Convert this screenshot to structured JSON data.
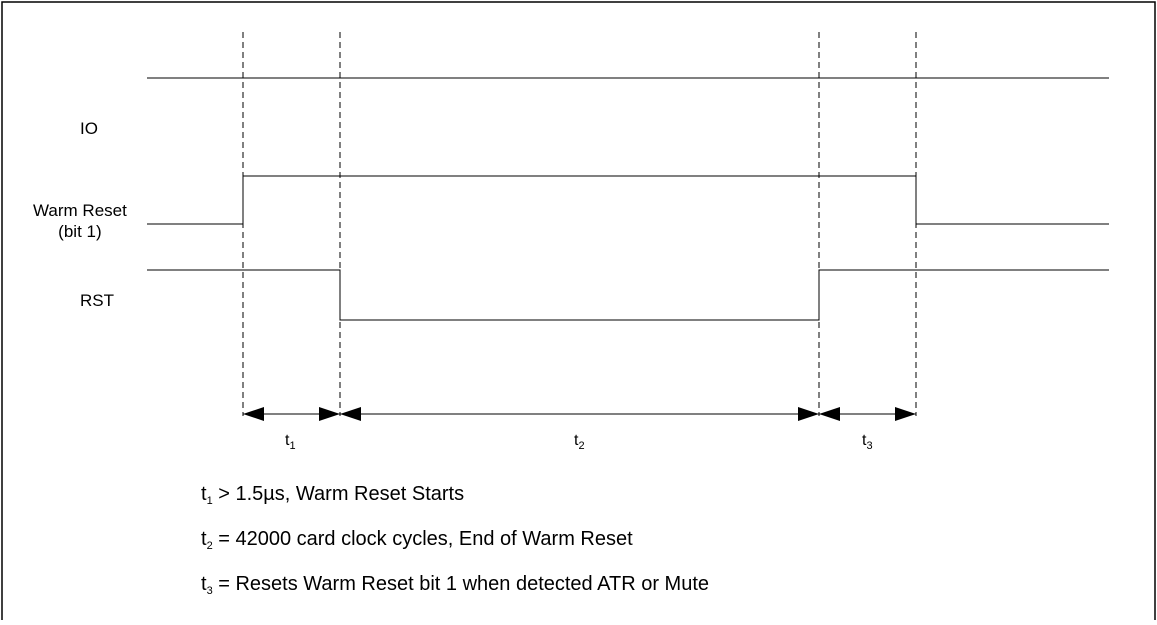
{
  "signals": {
    "io": "IO",
    "warm_reset": "Warm Reset",
    "warm_reset_sub": "(bit 1)",
    "rst": "RST"
  },
  "intervals": [
    {
      "symbol": "t",
      "index": "1"
    },
    {
      "symbol": "t",
      "index": "2"
    },
    {
      "symbol": "t",
      "index": "3"
    }
  ],
  "notes": [
    {
      "symbol": "t",
      "index": "1",
      "text": " >  1.5µs, Warm Reset Starts"
    },
    {
      "symbol": "t",
      "index": "2",
      "text": " = 42000 card clock cycles, End of Warm Reset"
    },
    {
      "symbol": "t",
      "index": "3",
      "text": " = Resets Warm Reset bit 1 when detected ATR or Mute"
    }
  ],
  "colors": {
    "line": "#000000",
    "background": "#ffffff"
  }
}
